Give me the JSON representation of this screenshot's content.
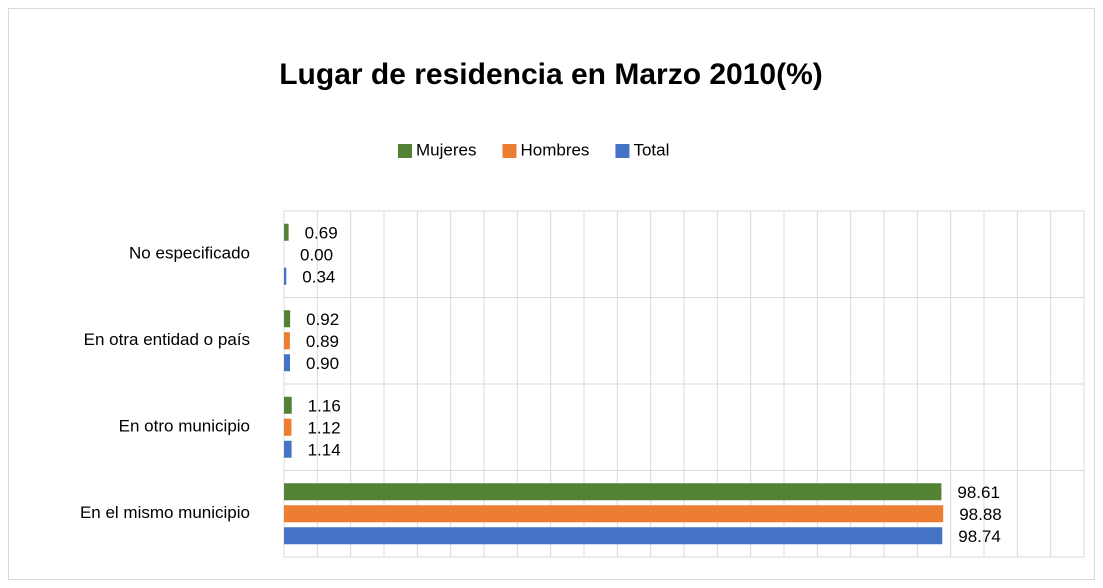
{
  "chart_data": {
    "type": "barh",
    "title": "Lugar de residencia en Marzo 2010(%)",
    "categories": [
      "En el mismo municipio",
      "En otro municipio",
      "En otra entidad o país",
      "No especificado"
    ],
    "series": [
      {
        "name": "Total",
        "color": "#4472c4",
        "values": [
          98.74,
          1.14,
          0.9,
          0.34
        ],
        "value_labels": [
          "98.74",
          "1.14",
          "0.90",
          "0.34"
        ]
      },
      {
        "name": "Hombres",
        "color": "#ed7d31",
        "values": [
          98.88,
          1.12,
          0.89,
          0
        ],
        "value_labels": [
          "98.88",
          "1.12",
          "0.89",
          "0.00"
        ]
      },
      {
        "name": "Mujeres",
        "color": "#548235",
        "values": [
          98.61,
          1.16,
          0.92,
          0.69
        ],
        "value_labels": [
          "98.61",
          "1.16",
          "0.92",
          "0.69"
        ]
      }
    ],
    "xlim": [
      0,
      120
    ],
    "xticks": [
      0,
      5,
      10,
      15,
      20,
      25,
      30,
      35,
      40,
      45,
      50,
      55,
      60,
      65,
      70,
      75,
      80,
      85,
      90,
      95,
      100,
      105,
      110,
      115,
      120
    ],
    "grid": true,
    "legend": "top"
  }
}
